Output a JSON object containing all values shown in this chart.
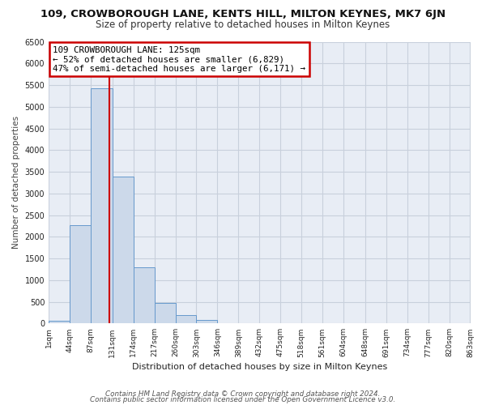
{
  "title": "109, CROWBOROUGH LANE, KENTS HILL, MILTON KEYNES, MK7 6JN",
  "subtitle": "Size of property relative to detached houses in Milton Keynes",
  "xlabel": "Distribution of detached houses by size in Milton Keynes",
  "ylabel": "Number of detached properties",
  "bar_color": "#ccd9ea",
  "bar_edge_color": "#6699cc",
  "grid_color": "#c8d0dc",
  "bg_color": "#e8edf5",
  "annotation_box_color": "#cc0000",
  "annotation_line1": "109 CROWBOROUGH LANE: 125sqm",
  "annotation_line2": "← 52% of detached houses are smaller (6,829)",
  "annotation_line3": "47% of semi-detached houses are larger (6,171) →",
  "vline_x": 125,
  "vline_color": "#cc0000",
  "bins": [
    1,
    44,
    87,
    131,
    174,
    217,
    260,
    303,
    346,
    389,
    432,
    475,
    518,
    561,
    604,
    648,
    691,
    734,
    777,
    820,
    863
  ],
  "bin_labels": [
    "1sqm",
    "44sqm",
    "87sqm",
    "131sqm",
    "174sqm",
    "217sqm",
    "260sqm",
    "303sqm",
    "346sqm",
    "389sqm",
    "432sqm",
    "475sqm",
    "518sqm",
    "561sqm",
    "604sqm",
    "648sqm",
    "691sqm",
    "734sqm",
    "777sqm",
    "820sqm",
    "863sqm"
  ],
  "counts": [
    60,
    2270,
    5430,
    3380,
    1290,
    480,
    190,
    80,
    0,
    0,
    0,
    0,
    0,
    0,
    0,
    0,
    0,
    0,
    0,
    0
  ],
  "ylim": [
    0,
    6500
  ],
  "yticks": [
    0,
    500,
    1000,
    1500,
    2000,
    2500,
    3000,
    3500,
    4000,
    4500,
    5000,
    5500,
    6000,
    6500
  ],
  "footer1": "Contains HM Land Registry data © Crown copyright and database right 2024.",
  "footer2": "Contains public sector information licensed under the Open Government Licence v3.0."
}
